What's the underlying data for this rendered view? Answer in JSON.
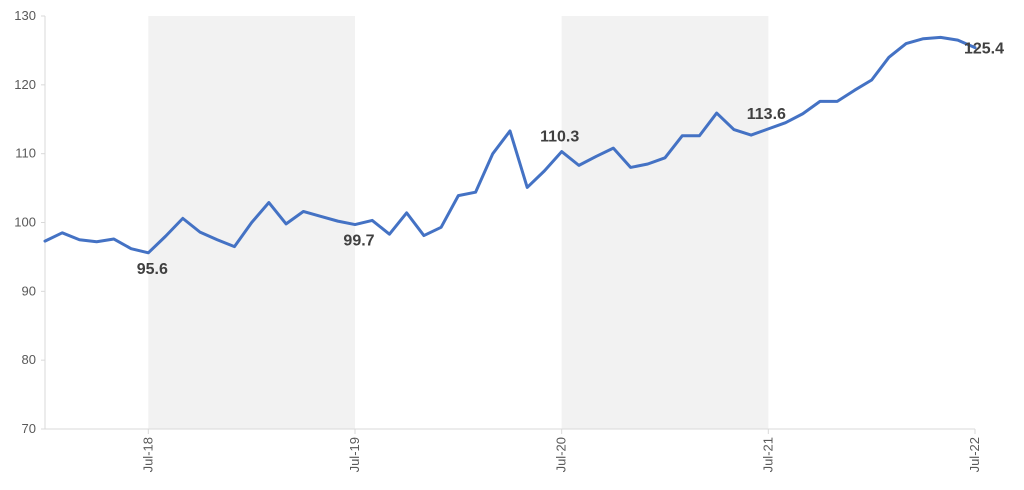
{
  "chart_data": {
    "type": "line",
    "title": "",
    "xlabel": "",
    "ylabel": "",
    "ylim": [
      70,
      130
    ],
    "yticks": [
      70,
      80,
      90,
      100,
      110,
      120,
      130
    ],
    "xticks": [
      "Jul-18",
      "Jul-19",
      "Jul-20",
      "Jul-21",
      "Jul-22"
    ],
    "shaded_periods": [
      [
        "Jul-18",
        "Jul-19"
      ],
      [
        "Jul-20",
        "Jul-21"
      ]
    ],
    "shade_color": "#f2f2f2",
    "line_color": "#4472c4",
    "series": [
      {
        "values": [
          97.3,
          98.5,
          97.5,
          97.2,
          97.6,
          96.2,
          95.6,
          98.0,
          100.6,
          98.6,
          97.5,
          96.5,
          100.0,
          102.9,
          99.8,
          101.6,
          100.9,
          100.2,
          99.7,
          100.3,
          98.3,
          101.4,
          98.1,
          99.3,
          103.9,
          104.4,
          110.0,
          113.3,
          105.1,
          107.5,
          110.3,
          108.3,
          109.6,
          110.8,
          108.0,
          108.5,
          109.4,
          112.6,
          112.6,
          115.9,
          113.5,
          112.7,
          113.6,
          114.5,
          115.8,
          117.6,
          117.6,
          119.2,
          120.7,
          124.0,
          126.0,
          126.7,
          126.9,
          126.5,
          125.4
        ]
      }
    ],
    "x_start": "Jan-18",
    "annotations": [
      {
        "label": "95.6",
        "index": 6,
        "pos": "below"
      },
      {
        "label": "99.7",
        "index": 18,
        "pos": "below"
      },
      {
        "label": "110.3",
        "index": 30,
        "pos": "above"
      },
      {
        "label": "113.6",
        "index": 42,
        "pos": "above"
      },
      {
        "label": "125.4",
        "index": 54,
        "pos": "right"
      }
    ]
  }
}
